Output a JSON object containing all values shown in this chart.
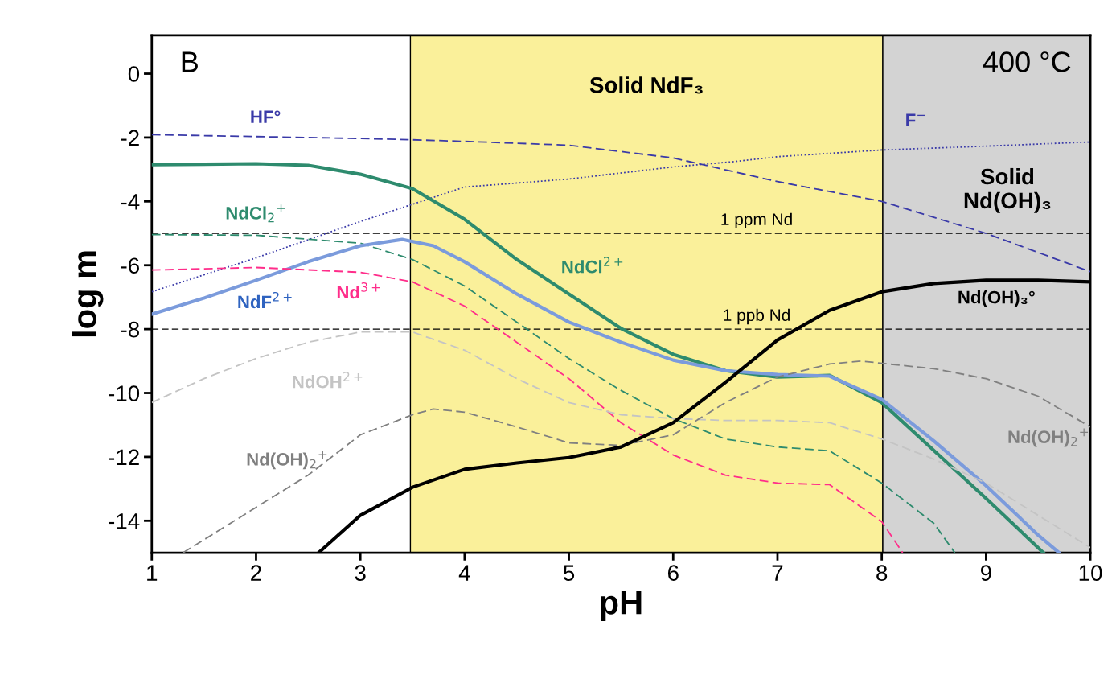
{
  "chart_data": {
    "type": "line",
    "xlabel": "pH",
    "ylabel": "log m",
    "xlim": [
      1,
      10
    ],
    "ylim": [
      -15,
      1.2
    ],
    "xticks": [
      1,
      2,
      3,
      4,
      5,
      6,
      7,
      8,
      9,
      10
    ],
    "yticks": [
      -14,
      -12,
      -10,
      -8,
      -6,
      -4,
      -2,
      0
    ],
    "grid": false,
    "series": [
      {
        "name": "HF°",
        "color": "#3a3aa8",
        "line_style": "dashed",
        "x": [
          1,
          2,
          3,
          3.5,
          4,
          5,
          6,
          7,
          8,
          9,
          10
        ],
        "values": [
          -1.91,
          -1.97,
          -2.03,
          -2.07,
          -2.12,
          -2.24,
          -2.64,
          -3.38,
          -4.0,
          -5.0,
          -6.2
        ]
      },
      {
        "name": "F$^{−}$",
        "color": "#3a3aa8",
        "line_style": "dotted",
        "x": [
          1,
          2,
          3,
          4,
          5,
          6,
          6.6,
          7,
          8,
          9,
          10
        ],
        "values": [
          -6.83,
          -5.77,
          -4.63,
          -3.55,
          -3.3,
          -2.92,
          -2.75,
          -2.6,
          -2.39,
          -2.27,
          -2.14
        ]
      },
      {
        "name": "NdCl$_{2}$$^{+}$",
        "color": "#2e8b6e",
        "line_style": "dashed",
        "x": [
          1,
          2,
          3,
          3.5,
          4,
          4.5,
          5,
          5.5,
          6,
          6.5,
          7,
          7.5,
          8,
          8.5,
          8.7
        ],
        "values": [
          -5.04,
          -5.06,
          -5.31,
          -5.82,
          -6.65,
          -7.78,
          -8.92,
          -9.92,
          -10.8,
          -11.44,
          -11.69,
          -11.81,
          -12.82,
          -14.08,
          -15
        ]
      },
      {
        "name": "NdCl$^{2+}$",
        "color": "#2e8b6e",
        "line_style": "solid",
        "x": [
          1,
          2,
          2.5,
          3,
          3.5,
          4,
          4.5,
          5,
          5.5,
          6,
          6.5,
          7,
          7.5,
          8,
          8.5,
          9,
          9.55
        ],
        "values": [
          -2.85,
          -2.82,
          -2.87,
          -3.15,
          -3.6,
          -4.56,
          -5.82,
          -6.9,
          -7.98,
          -8.79,
          -9.3,
          -9.5,
          -9.45,
          -10.3,
          -11.8,
          -13.3,
          -15
        ]
      },
      {
        "name": "NdF$^{2+}$",
        "color": "#7b9bdc",
        "line_style": "solid",
        "x": [
          1,
          1.5,
          2,
          2.5,
          3,
          3.4,
          3.7,
          4,
          4.5,
          5,
          5.5,
          6,
          6.5,
          7,
          7.5,
          8,
          8.5,
          9,
          9.5,
          9.7
        ],
        "values": [
          -7.53,
          -7.03,
          -6.47,
          -5.89,
          -5.39,
          -5.19,
          -5.39,
          -5.89,
          -6.9,
          -7.78,
          -8.41,
          -8.97,
          -9.3,
          -9.42,
          -9.47,
          -10.2,
          -11.5,
          -12.9,
          -14.45,
          -15
        ]
      },
      {
        "name": "Nd$^{3+}$",
        "color": "#ff2d8a",
        "line_style": "dashed",
        "x": [
          1,
          2,
          3,
          3.5,
          4,
          4.5,
          5,
          5.5,
          6,
          6.5,
          7,
          7.5,
          8,
          8.2
        ],
        "values": [
          -6.15,
          -6.07,
          -6.22,
          -6.52,
          -7.28,
          -8.41,
          -9.55,
          -10.93,
          -11.94,
          -12.57,
          -12.82,
          -12.87,
          -14.03,
          -15
        ]
      },
      {
        "name": "NdOH$^{2+}$",
        "color": "#c4c4c4",
        "line_style": "dashed",
        "x": [
          1,
          1.5,
          2,
          2.5,
          3,
          3.5,
          4,
          4.5,
          5,
          5.5,
          6,
          6.5,
          7,
          7.5,
          8,
          8.5,
          9,
          9.5,
          10
        ],
        "values": [
          -10.3,
          -9.55,
          -8.92,
          -8.41,
          -8.09,
          -8.09,
          -8.66,
          -9.55,
          -10.3,
          -10.68,
          -10.8,
          -10.86,
          -10.86,
          -10.93,
          -11.44,
          -12.07,
          -12.82,
          -13.83,
          -14.84
        ]
      },
      {
        "name": "Nd(OH)$_{2}$$^{+}$",
        "color": "#808080",
        "line_style": "dashed",
        "x": [
          1.3,
          2,
          2.5,
          3,
          3.5,
          3.7,
          4,
          4.5,
          5,
          5.5,
          6,
          6.5,
          7,
          7.5,
          7.8,
          8.5,
          9,
          9.5,
          10
        ],
        "values": [
          -15,
          -13.58,
          -12.57,
          -11.31,
          -10.68,
          -10.5,
          -10.6,
          -11.06,
          -11.56,
          -11.64,
          -11.31,
          -10.3,
          -9.5,
          -9.09,
          -9.0,
          -9.24,
          -9.55,
          -10.1,
          -11.06
        ]
      },
      {
        "name": "Nd(OH)₃°",
        "color": "#000000",
        "line_style": "solid",
        "x": [
          2.6,
          3,
          3.5,
          4,
          4.5,
          5,
          5.5,
          6,
          6.5,
          7,
          7.5,
          8,
          8.5,
          9,
          9.5,
          10
        ],
        "values": [
          -15,
          -13.83,
          -12.95,
          -12.39,
          -12.19,
          -12.02,
          -11.69,
          -10.93,
          -9.67,
          -8.34,
          -7.41,
          -6.83,
          -6.57,
          -6.47,
          -6.47,
          -6.52
        ]
      }
    ],
    "bands": [
      {
        "axis": "x",
        "from": 3.48,
        "to": 8.01,
        "label": "Solid NdF₃",
        "color": "#faf09a"
      },
      {
        "axis": "x",
        "from": 8.01,
        "to": 10,
        "label": "Solid Nd(OH)₃",
        "color": "#d3d3d3"
      }
    ],
    "ref_lines": [
      {
        "axis": "y",
        "value": -5,
        "label": "1 ppm Nd",
        "color": "#000000",
        "line_style": "dashed"
      },
      {
        "axis": "y",
        "value": -8,
        "label": "1 ppb Nd",
        "color": "#000000",
        "line_style": "dashed"
      }
    ],
    "annotations": [
      "B",
      "400 °C"
    ]
  }
}
